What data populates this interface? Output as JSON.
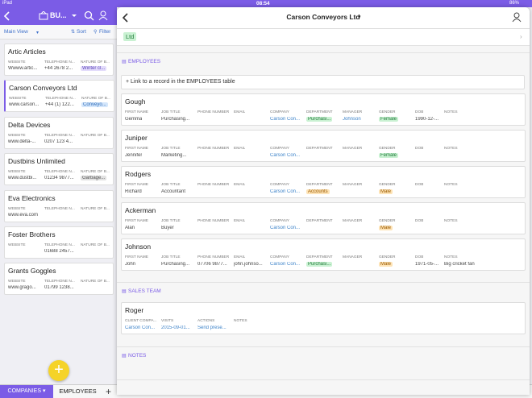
{
  "status_bar": {
    "device": "iPad",
    "time": "08:54",
    "battery": "86%"
  },
  "sidebar": {
    "title": "BU...",
    "view": "Main View",
    "sort": "Sort",
    "filter": "Filter",
    "field_labels": [
      "WEBSITE",
      "TELEPHONE N...",
      "NATURE OF B..."
    ],
    "records": [
      {
        "name": "Artic Articles",
        "values": [
          "Wwww.artic...",
          "+44 2678 2...",
          {
            "text": "Winter cl...",
            "tag": "purple"
          }
        ]
      },
      {
        "name": "Carson Conveyors Ltd",
        "selected": true,
        "values": [
          "www.carson...",
          "+44 (1) 122...",
          {
            "text": "Conveyo...",
            "tag": "blue"
          }
        ]
      },
      {
        "name": "Delta Devices",
        "values": [
          "www.delta-...",
          "0207 123 4...",
          null
        ]
      },
      {
        "name": "Dustbins Unlimited",
        "values": [
          "www.dustbi...",
          "01234 9877...",
          {
            "text": "Garbage...",
            "tag": "gray"
          }
        ]
      },
      {
        "name": "Eva Electronics",
        "values": [
          "www.eva.com",
          null,
          null
        ]
      },
      {
        "name": "Foster Brothers",
        "values": [
          null,
          "01688 2457...",
          null
        ]
      },
      {
        "name": "Grants Goggles",
        "values": [
          "www.grago...",
          "01799 1238...",
          null
        ]
      }
    ]
  },
  "tabs": [
    "COMPANIES",
    "EMPLOYEES"
  ],
  "detail": {
    "title": "Carson Conveyors Ltd",
    "tag": "Ltd",
    "employees": {
      "heading": "EMPLOYEES",
      "link": "+ Link to a record in the EMPLOYEES table",
      "fields": [
        "FIRST NAME",
        "JOB TITLE",
        "PHONE NUMBER",
        "EMAIL",
        "COMPANY",
        "DEPARTMENT",
        "MANAGER",
        "GENDER",
        "DOB",
        "NOTES"
      ],
      "records": [
        {
          "name": "Gough",
          "values": [
            "Gemma",
            "Purchasing...",
            null,
            null,
            "Carson Con...",
            {
              "text": "Purchasi...",
              "tag": "green"
            },
            "Johnson",
            {
              "text": "Female",
              "tag": "green"
            },
            "1990-12-...",
            null
          ]
        },
        {
          "name": "Juniper",
          "values": [
            "Jennifer",
            "Marketing...",
            null,
            null,
            "Carson Con...",
            null,
            null,
            {
              "text": "Female",
              "tag": "green"
            },
            null,
            null
          ]
        },
        {
          "name": "Rodgers",
          "values": [
            "Richard",
            "Accountant",
            null,
            null,
            "Carson Con...",
            {
              "text": "Accounts",
              "tag": "orange"
            },
            null,
            {
              "text": "Male",
              "tag": "orange"
            },
            null,
            null
          ]
        },
        {
          "name": "Ackerman",
          "values": [
            "Alan",
            "Buyer",
            null,
            null,
            "Carson Con...",
            null,
            null,
            {
              "text": "Male",
              "tag": "orange"
            },
            null,
            null
          ]
        },
        {
          "name": "Johnson",
          "values": [
            "John",
            "Purchasing...",
            "07706 9877...",
            "john.johnso...",
            "Carson Con...",
            {
              "text": "Purchasi...",
              "tag": "green"
            },
            null,
            {
              "text": "Male",
              "tag": "orange"
            },
            "1971-05-...",
            "Big cricket fan"
          ]
        }
      ]
    },
    "sales_team": {
      "heading": "SALES TEAM",
      "fields": [
        "CLIENT COMPA...",
        "VISITS",
        "ACTIONS",
        "NOTES"
      ],
      "records": [
        {
          "name": "Roger",
          "values": [
            "Carson Con...",
            "2015-09-01...",
            "Send prese...",
            null
          ]
        }
      ]
    },
    "notes": {
      "heading": "NOTES"
    }
  }
}
